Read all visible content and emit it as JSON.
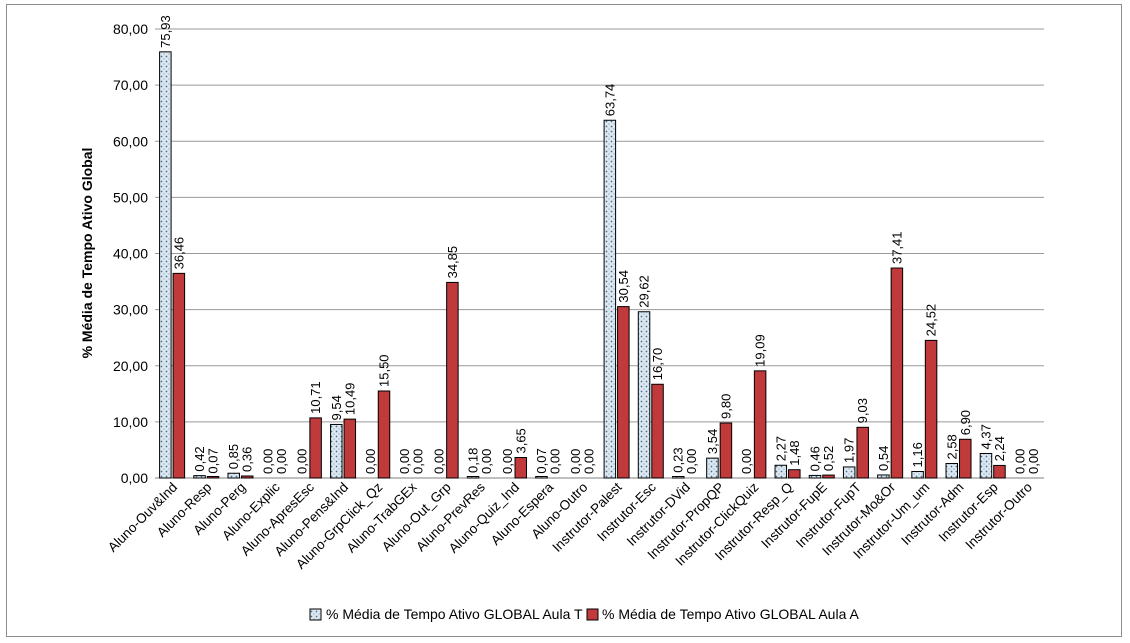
{
  "chart_data": {
    "type": "bar",
    "title": "",
    "xlabel": "",
    "ylabel": "% Média de Tempo Ativo Global",
    "ylim": [
      0,
      80
    ],
    "yticks": [
      "0,00",
      "10,00",
      "20,00",
      "30,00",
      "40,00",
      "50,00",
      "60,00",
      "70,00",
      "80,00"
    ],
    "grid": "horizontal",
    "legend_position": "bottom",
    "categories": [
      "Aluno-Ouv&Ind",
      "Aluno-Resp",
      "Aluno-Perg",
      "Aluno-Explic",
      "Aluno-ApresEsc",
      "Aluno-Pens&Ind",
      "Aluno-GrpClick_Qz",
      "Aluno-TrabGEx",
      "Aluno-Out_Grp",
      "Aluno-PrevRes",
      "Aluno-Quiz_Ind",
      "Aluno-Espera",
      "Aluno-Outro",
      "Instrutor-Palest",
      "Instrutor-Esc",
      "Instrutor-DVid",
      "Instrutor-PropQP",
      "Instrutor-ClickQuiz",
      "Instrutor-Resp_Q",
      "Instrutor-FupE",
      "Instrutor-FupT",
      "Instrutor-Mo&Or",
      "Instrutor-Um_um",
      "Instrutor-Adm",
      "Instrutor-Esp",
      "Instrutor-Outro"
    ],
    "series": [
      {
        "name": "% Média de Tempo Ativo GLOBAL Aula T",
        "color": "#dbe7f1",
        "pattern": "dotted",
        "values": [
          75.93,
          0.42,
          0.85,
          0.0,
          0.0,
          9.54,
          0.0,
          0.0,
          0.0,
          0.18,
          0.0,
          0.07,
          0.0,
          63.74,
          29.62,
          0.23,
          3.54,
          0.0,
          2.27,
          0.46,
          1.97,
          0.54,
          1.16,
          2.58,
          4.37,
          0.0
        ],
        "labels": [
          "75,93",
          "0,42",
          "0,85",
          "0,00",
          "0,00",
          "9,54",
          "0,00",
          "0,00",
          "0,00",
          "0,18",
          "0,00",
          "0,07",
          "0,00",
          "63,74",
          "29,62",
          "0,23",
          "3,54",
          "0,00",
          "2,27",
          "0,46",
          "1,97",
          "0,54",
          "1,16",
          "2,58",
          "4,37",
          "0,00"
        ]
      },
      {
        "name": "% Média de Tempo Ativo GLOBAL Aula A",
        "color": "#c0393b",
        "pattern": "solid",
        "values": [
          36.46,
          0.07,
          0.36,
          0.0,
          10.71,
          10.49,
          15.5,
          0.0,
          34.85,
          0.0,
          3.65,
          0.0,
          0.0,
          30.54,
          16.7,
          0.0,
          9.8,
          19.09,
          1.48,
          0.52,
          9.03,
          37.41,
          24.52,
          6.9,
          2.24,
          0.0
        ],
        "labels": [
          "36,46",
          "0,07",
          "0,36",
          "0,00",
          "10,71",
          "10,49",
          "15,50",
          "0,00",
          "34,85",
          "0,00",
          "3,65",
          "0,00",
          "0,00",
          "30,54",
          "16,70",
          "0,00",
          "9,80",
          "19,09",
          "1,48",
          "0,52",
          "9,03",
          "37,41",
          "24,52",
          "6,90",
          "2,24",
          "0,00"
        ]
      }
    ]
  }
}
